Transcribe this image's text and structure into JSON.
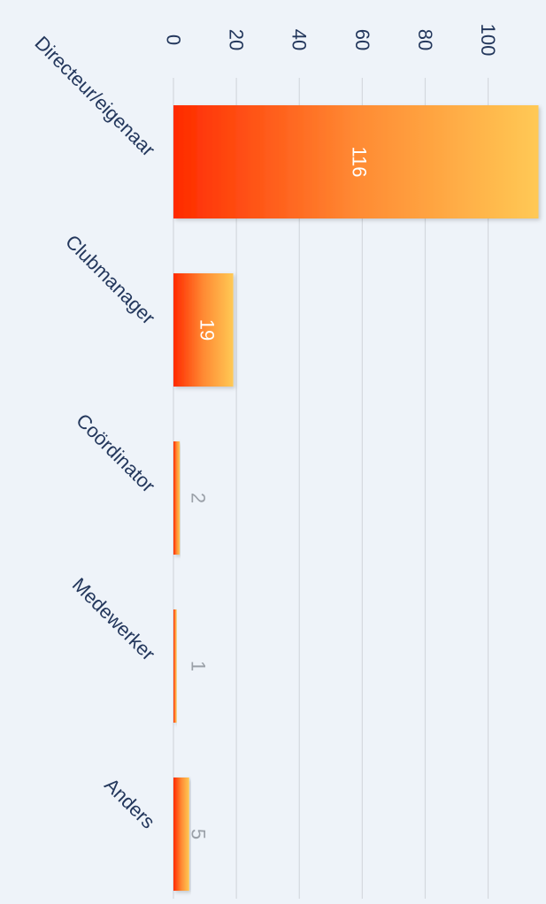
{
  "chart_data": {
    "type": "bar",
    "orientation": "horizontal",
    "categories": [
      "Directeur/eigenaar",
      "Clubmanager",
      "Coördinator",
      "Medewerker",
      "Anders"
    ],
    "values": [
      116,
      19,
      2,
      1,
      5
    ],
    "value_labels": [
      "116",
      "19",
      "2",
      "1",
      "5"
    ],
    "ticks": [
      0,
      20,
      40,
      60,
      80,
      100
    ],
    "tick_labels": [
      "0",
      "20",
      "40",
      "60",
      "80",
      "100"
    ],
    "xlim": [
      0,
      116
    ],
    "grid": true,
    "legend": "none",
    "title": "",
    "xlabel": "",
    "ylabel": ""
  },
  "colors": {
    "background": "#eef3f9",
    "gradient_start": "#ff2a00",
    "gradient_mid": "#ff8a33",
    "gradient_end": "#ffc955",
    "text": "#23375c",
    "grid": "#d4d8de",
    "label_inside": "#ffffff",
    "label_outside": "#9aa0a8"
  }
}
